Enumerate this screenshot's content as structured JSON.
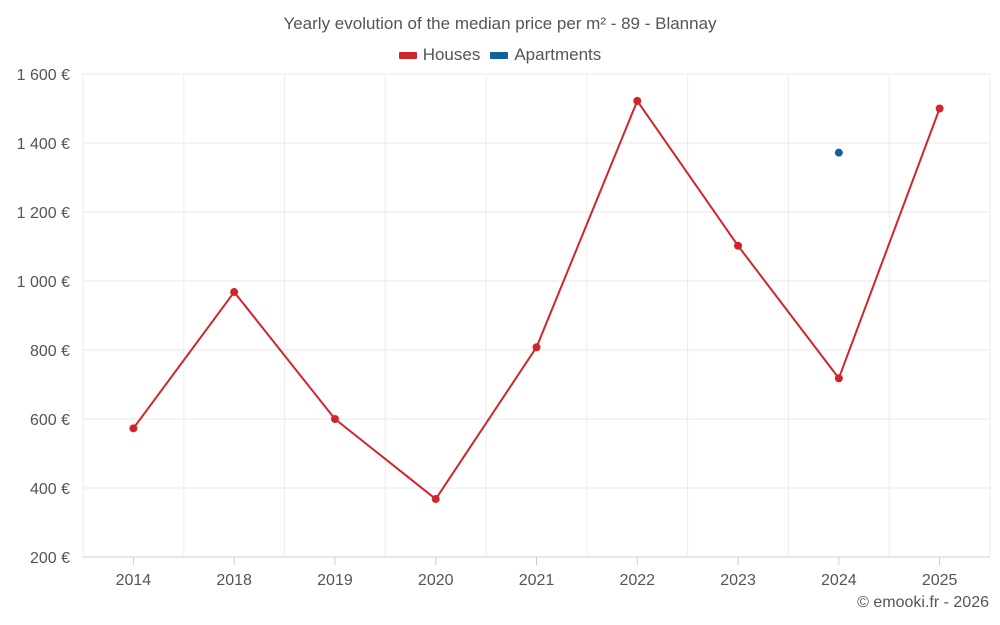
{
  "chart_data": {
    "type": "line",
    "title": "Yearly evolution of the median price per m² - 89 - Blannay",
    "categories": [
      "2014",
      "2018",
      "2019",
      "2020",
      "2021",
      "2022",
      "2023",
      "2024",
      "2025"
    ],
    "series": [
      {
        "name": "Houses",
        "color": "#d0262b",
        "values": [
          573,
          968,
          600,
          368,
          808,
          1522,
          1102,
          718,
          1500
        ]
      },
      {
        "name": "Apartments",
        "color": "#0e6399",
        "values": [
          null,
          null,
          null,
          null,
          null,
          null,
          null,
          1372,
          null
        ]
      }
    ],
    "ylim": [
      200,
      1600
    ],
    "yticks": [
      200,
      400,
      600,
      800,
      1000,
      1200,
      1400,
      1600
    ],
    "ytick_labels": [
      "200 €",
      "400 €",
      "600 €",
      "800 €",
      "1 000 €",
      "1 200 €",
      "1 400 €",
      "1 600 €"
    ],
    "xlabel": "",
    "ylabel": "",
    "grid": true,
    "legend_position": "top-center"
  },
  "credit": "© emooki.fr - 2026"
}
